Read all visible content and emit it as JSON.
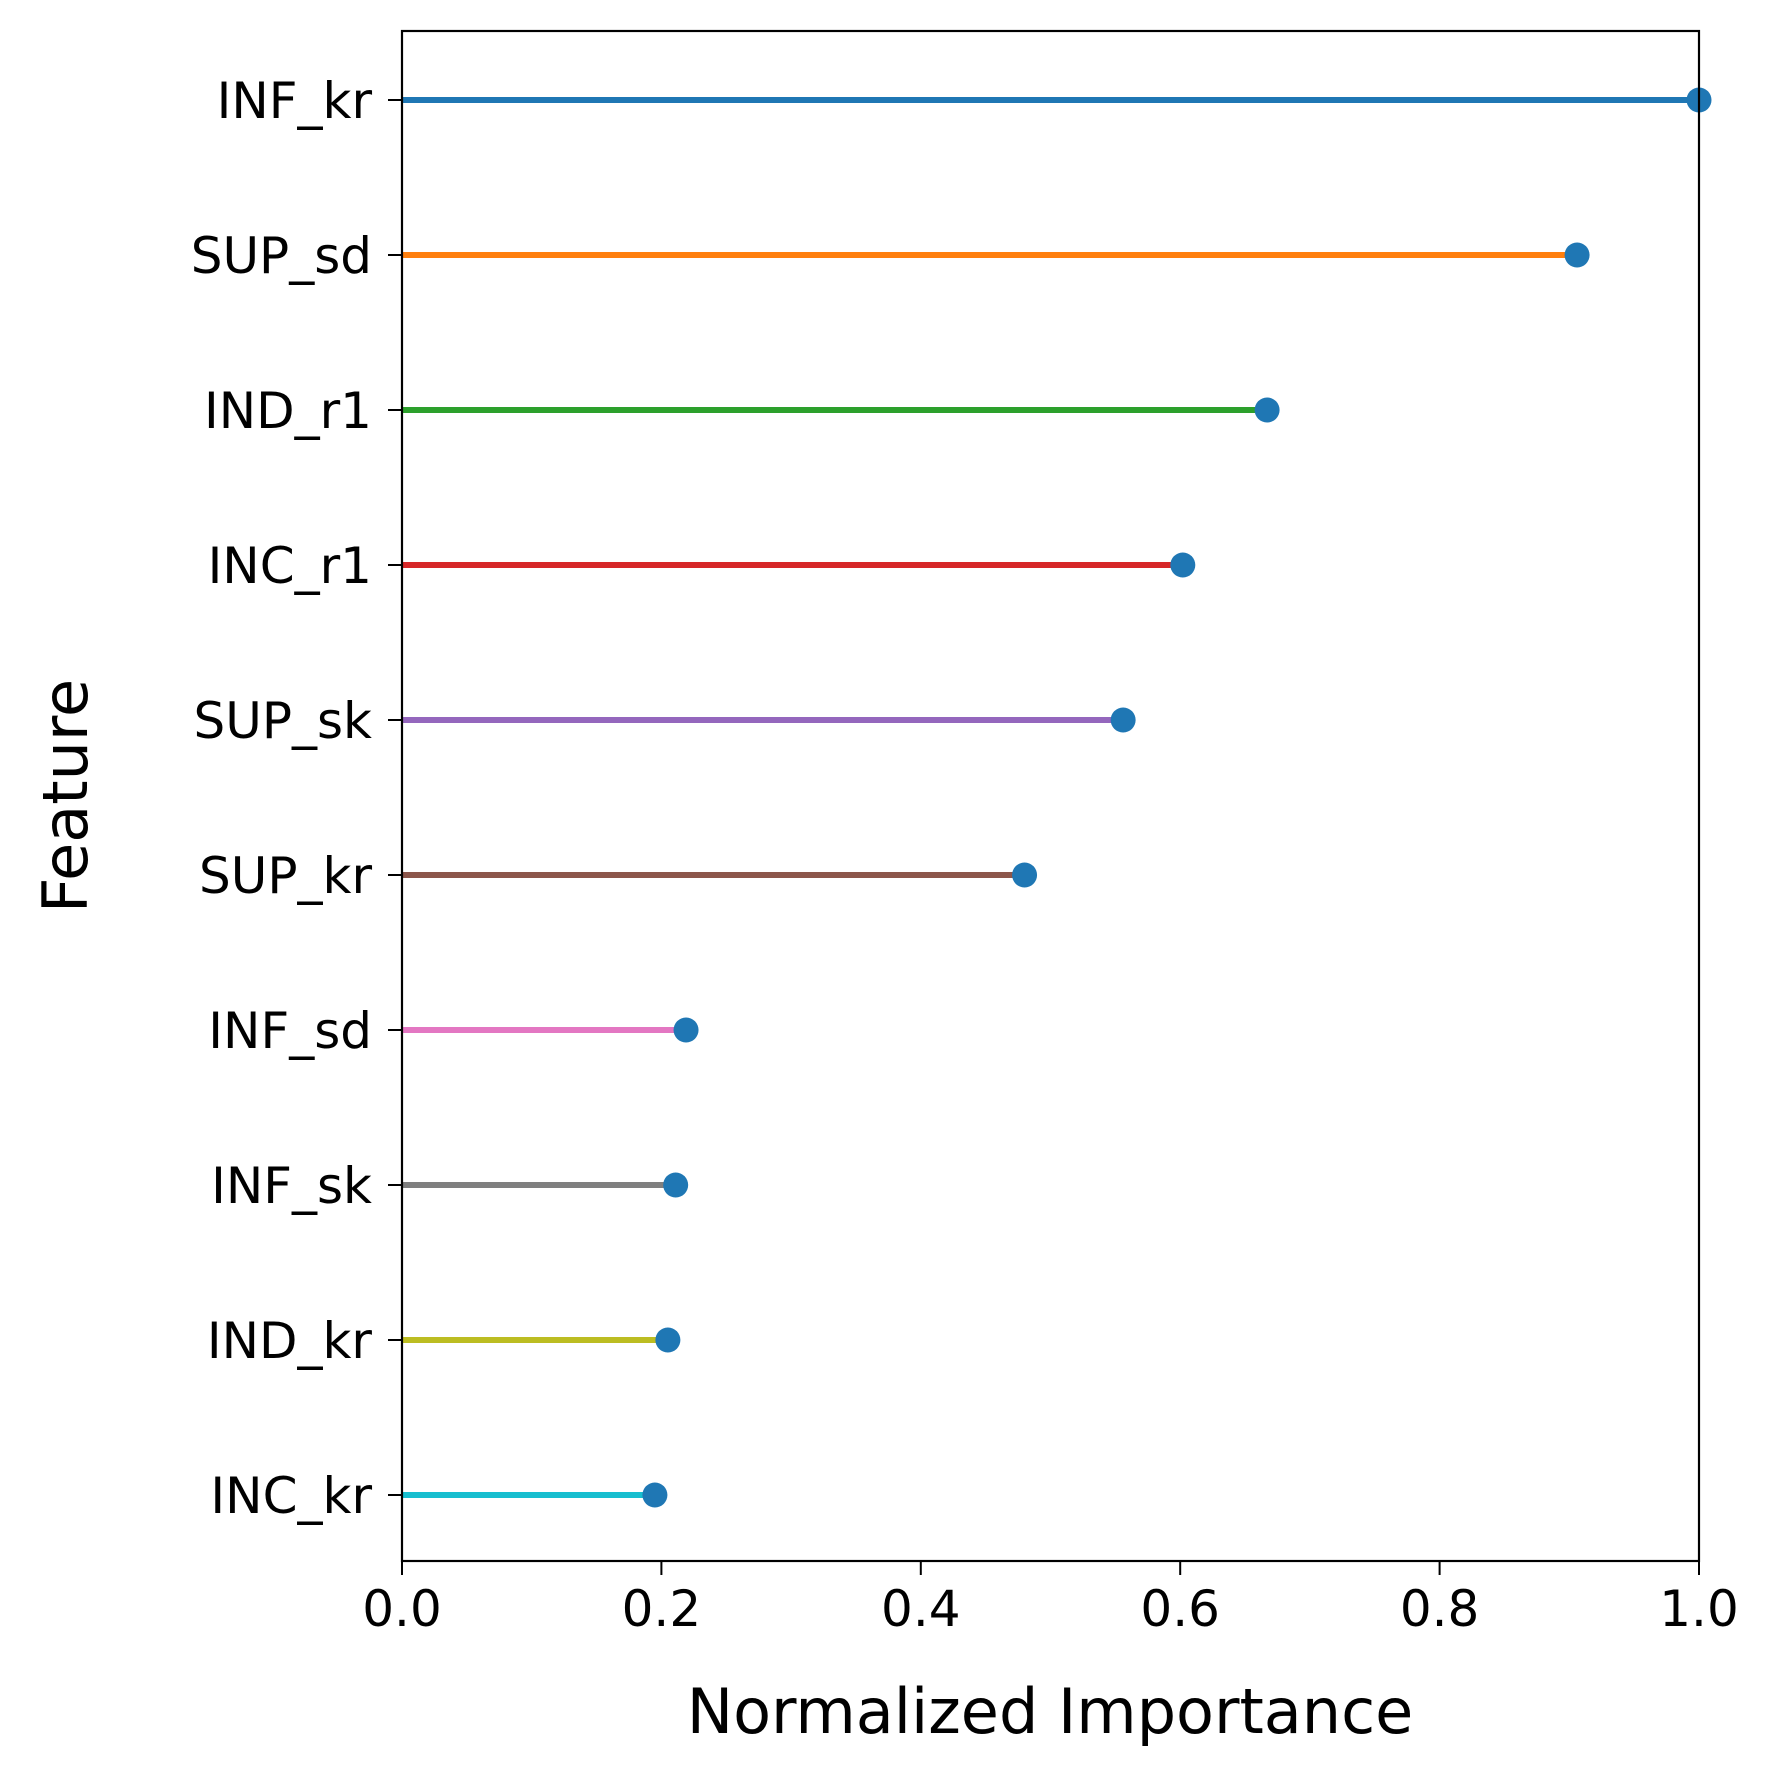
{
  "chart_data": {
    "type": "lollipop",
    "title": "",
    "xlabel": "Normalized Importance",
    "ylabel": "Feature",
    "xlim": [
      0.0,
      1.0
    ],
    "xticks": [
      "0.0",
      "0.2",
      "0.4",
      "0.6",
      "0.8",
      "1.0"
    ],
    "grid": false,
    "marker_color": "#1f77b4",
    "features": [
      {
        "name": "INF_kr",
        "value": 1.0,
        "color": "#1f77b4"
      },
      {
        "name": "SUP_sd",
        "value": 0.906,
        "color": "#ff7f0e"
      },
      {
        "name": "IND_r1",
        "value": 0.667,
        "color": "#2ca02c"
      },
      {
        "name": "INC_r1",
        "value": 0.602,
        "color": "#d62728"
      },
      {
        "name": "SUP_sk",
        "value": 0.556,
        "color": "#9467bd"
      },
      {
        "name": "SUP_kr",
        "value": 0.48,
        "color": "#8c564b"
      },
      {
        "name": "INF_sd",
        "value": 0.219,
        "color": "#e377c2"
      },
      {
        "name": "INF_sk",
        "value": 0.211,
        "color": "#7f7f7f"
      },
      {
        "name": "IND_kr",
        "value": 0.205,
        "color": "#bcbd22"
      },
      {
        "name": "INC_kr",
        "value": 0.195,
        "color": "#17becf"
      }
    ]
  }
}
